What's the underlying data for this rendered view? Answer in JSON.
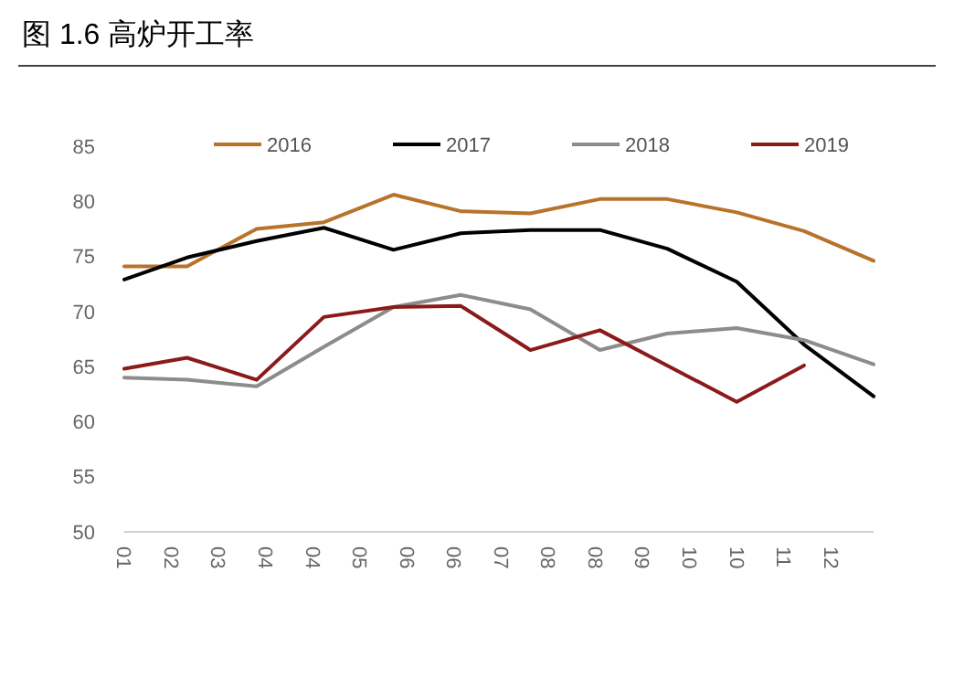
{
  "chart_data": {
    "type": "line",
    "title": "图 1.6 高炉开工率",
    "x": [
      "--01-31",
      "--02-28",
      "--03-31",
      "--04-30",
      "--05-31",
      "--06-30",
      "--07-31",
      "--08-31",
      "--09-30",
      "--10-31",
      "--11-30",
      "--12-31"
    ],
    "series": [
      {
        "name": "2016",
        "color": "#b8732b",
        "values": [
          74.1,
          74.1,
          77.5,
          78.1,
          80.6,
          79.1,
          78.9,
          80.2,
          80.2,
          79.0,
          77.3,
          74.6
        ]
      },
      {
        "name": "2017",
        "color": "#000000",
        "values": [
          72.9,
          74.9,
          76.4,
          77.6,
          75.6,
          77.1,
          77.4,
          77.4,
          75.7,
          72.7,
          67.0,
          62.3
        ]
      },
      {
        "name": "2018",
        "color": "#8c8c8c",
        "values": [
          64.0,
          63.8,
          63.2,
          66.8,
          70.4,
          71.5,
          70.2,
          66.5,
          68.0,
          68.5,
          67.4,
          65.2
        ]
      },
      {
        "name": "2019",
        "color": "#8b1a1a",
        "values": [
          64.8,
          65.8,
          63.8,
          69.5,
          70.4,
          70.5,
          66.5,
          68.3,
          65.1,
          61.8,
          65.1,
          null
        ]
      }
    ],
    "xlim": [
      "--01-31",
      "--12-31"
    ],
    "xticks": [
      {
        "value": "--01-31",
        "label": "01"
      },
      {
        "value": "--02-21",
        "label": "02"
      },
      {
        "value": "--03-14",
        "label": "03"
      },
      {
        "value": "--04-04",
        "label": "04"
      },
      {
        "value": "--04-25",
        "label": "04"
      },
      {
        "value": "--05-16",
        "label": "05"
      },
      {
        "value": "--06-06",
        "label": "06"
      },
      {
        "value": "--06-27",
        "label": "06"
      },
      {
        "value": "--07-18",
        "label": "07"
      },
      {
        "value": "--08-08",
        "label": "08"
      },
      {
        "value": "--08-29",
        "label": "08"
      },
      {
        "value": "--09-19",
        "label": "09"
      },
      {
        "value": "--10-10",
        "label": "10"
      },
      {
        "value": "--10-31",
        "label": "10"
      },
      {
        "value": "--11-21",
        "label": "11"
      },
      {
        "value": "--12-12",
        "label": "12"
      }
    ],
    "ylim": [
      50,
      85
    ],
    "yticks": [
      50,
      55,
      60,
      65,
      70,
      75,
      80,
      85
    ],
    "grid": false,
    "legend": "top",
    "marker": "none",
    "line_style": "solid"
  }
}
